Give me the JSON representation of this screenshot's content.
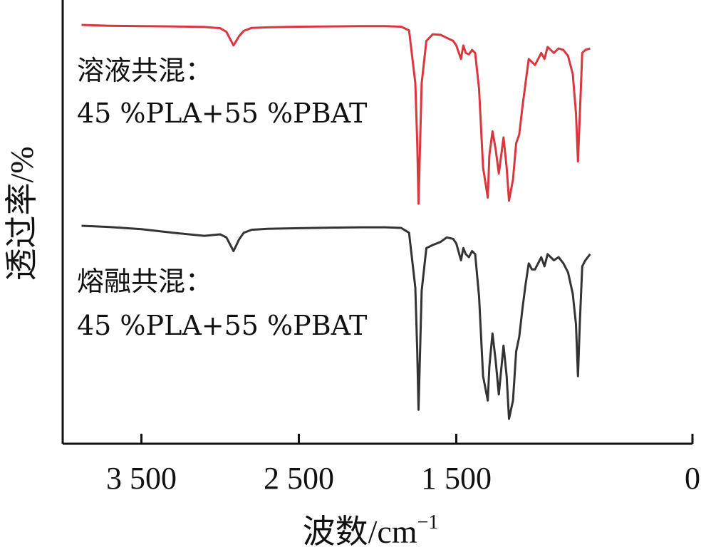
{
  "chart_data": {
    "type": "line",
    "xlabel": "波数/cm",
    "xlabel_superscript": "−1",
    "ylabel": "透过率/%",
    "xlim": [
      4000,
      0
    ],
    "x_reversed": true,
    "x_ticks": [
      {
        "value": 3500,
        "label": "3 500"
      },
      {
        "value": 2500,
        "label": "2 500"
      },
      {
        "value": 1500,
        "label": "1 500"
      },
      {
        "value": 0,
        "label": "0"
      }
    ],
    "y_ticks_shown": false,
    "grid": false,
    "legend": "none",
    "series": [
      {
        "label_lines": [
          "溶液共混：",
          "45 %PLA+55 %PBAT"
        ],
        "color": "#d9363e",
        "x": [
          3880,
          3700,
          3500,
          3300,
          3100,
          3000,
          2960,
          2915,
          2880,
          2850,
          2800,
          2700,
          2500,
          2300,
          2100,
          1950,
          1850,
          1800,
          1760,
          1748,
          1740,
          1720,
          1690,
          1650,
          1600,
          1560,
          1520,
          1500,
          1470,
          1455,
          1440,
          1420,
          1400,
          1380,
          1355,
          1330,
          1300,
          1290,
          1270,
          1250,
          1230,
          1200,
          1180,
          1165,
          1140,
          1120,
          1100,
          1080,
          1060,
          1040,
          1020,
          1000,
          960,
          940,
          920,
          880,
          850,
          820,
          790,
          760,
          740,
          727,
          715,
          700,
          680,
          650
        ],
        "y": [
          99.3,
          99.0,
          98.9,
          98.8,
          98.6,
          98.2,
          97.0,
          92.5,
          95.5,
          97.3,
          98.3,
          98.5,
          98.7,
          98.8,
          98.9,
          98.9,
          98.7,
          97.5,
          80.0,
          60.0,
          40.0,
          80.0,
          94.0,
          96.2,
          96.0,
          95.0,
          94.0,
          92.5,
          88.0,
          92.5,
          90.0,
          89.5,
          91.0,
          90.0,
          78.0,
          52.0,
          42.0,
          56.0,
          64.0,
          58.0,
          50.0,
          62.0,
          52.0,
          41.0,
          48.0,
          60.0,
          63.0,
          72.0,
          80.0,
          88.0,
          87.0,
          86.0,
          90.0,
          88.0,
          92.0,
          90.0,
          91.5,
          91.0,
          89.0,
          83.0,
          70.0,
          54.0,
          70.0,
          90.0,
          91.0,
          91.5
        ]
      },
      {
        "label_lines": [
          "熔融共混：",
          "45 %PLA+55 %PBAT"
        ],
        "color": "#333333",
        "x": [
          3880,
          3700,
          3500,
          3300,
          3100,
          3000,
          2960,
          2915,
          2880,
          2850,
          2800,
          2700,
          2500,
          2300,
          2100,
          1950,
          1850,
          1800,
          1760,
          1748,
          1740,
          1720,
          1690,
          1650,
          1600,
          1560,
          1520,
          1500,
          1470,
          1455,
          1440,
          1420,
          1400,
          1380,
          1355,
          1330,
          1300,
          1290,
          1270,
          1250,
          1230,
          1200,
          1180,
          1165,
          1140,
          1120,
          1100,
          1080,
          1060,
          1040,
          1020,
          1000,
          960,
          940,
          920,
          880,
          850,
          820,
          790,
          760,
          740,
          727,
          715,
          700,
          680,
          650
        ],
        "y": [
          99.3,
          98.9,
          98.2,
          97.0,
          96.0,
          96.5,
          95.5,
          91.0,
          94.8,
          97.0,
          98.0,
          98.3,
          98.5,
          98.7,
          98.8,
          98.8,
          98.6,
          97.0,
          79.0,
          58.0,
          39.0,
          78.0,
          92.0,
          93.0,
          94.0,
          95.5,
          95.0,
          93.5,
          88.0,
          92.0,
          90.0,
          89.0,
          91.0,
          90.0,
          76.0,
          50.0,
          42.0,
          53.0,
          64.0,
          55.0,
          44.0,
          60.0,
          50.0,
          36.0,
          42.0,
          58.0,
          63.0,
          72.0,
          80.0,
          87.0,
          85.0,
          85.0,
          89.0,
          86.0,
          90.0,
          88.0,
          89.0,
          87.0,
          84.0,
          77.0,
          67.0,
          50.0,
          68.0,
          86.0,
          88.0,
          90.0
        ]
      }
    ]
  }
}
